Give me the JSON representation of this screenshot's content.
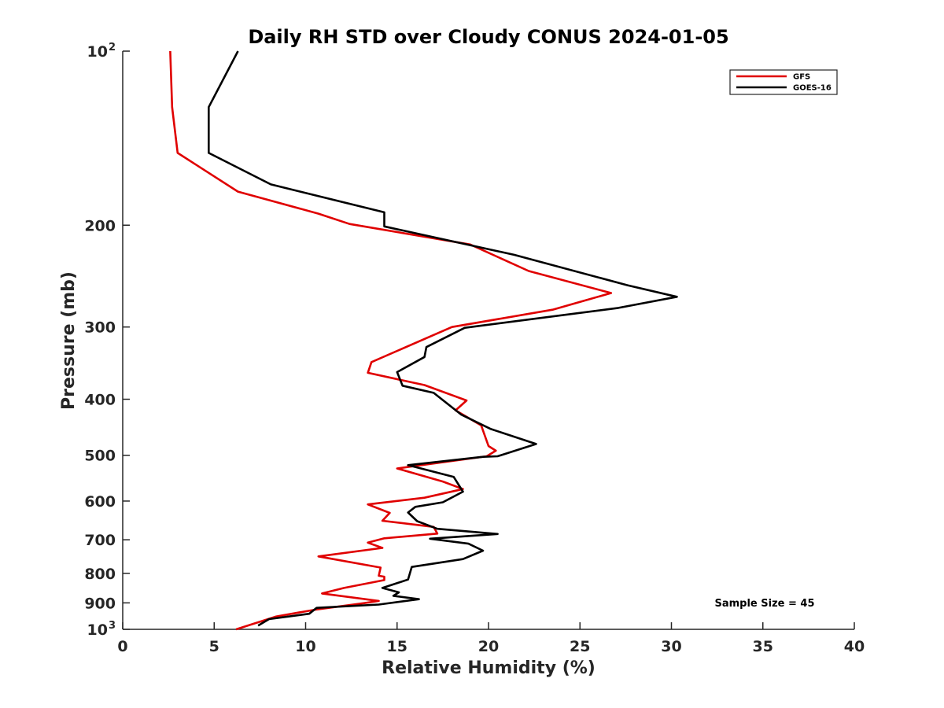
{
  "chart_data": {
    "type": "line",
    "title": "Daily RH STD over Cloudy CONUS 2024-01-05",
    "xlabel": "Relative Humidity (%)",
    "ylabel": "Pressure (mb)",
    "xlim": [
      0,
      40
    ],
    "ylim": [
      100,
      1000
    ],
    "y_scale": "log",
    "y_reversed": true,
    "x_ticks": [
      0,
      5,
      10,
      15,
      20,
      25,
      30,
      35,
      40
    ],
    "x_tick_labels": [
      "0",
      "5",
      "10",
      "15",
      "20",
      "25",
      "30",
      "35",
      "40"
    ],
    "y_ticks": [
      100,
      200,
      300,
      400,
      500,
      600,
      700,
      800,
      900,
      1000
    ],
    "y_tick_labels": [
      {
        "base": "10",
        "exp": "2"
      },
      {
        "base": "200",
        "exp": ""
      },
      {
        "base": "300",
        "exp": ""
      },
      {
        "base": "400",
        "exp": ""
      },
      {
        "base": "500",
        "exp": ""
      },
      {
        "base": "600",
        "exp": ""
      },
      {
        "base": "700",
        "exp": ""
      },
      {
        "base": "800",
        "exp": ""
      },
      {
        "base": "900",
        "exp": ""
      },
      {
        "base": "10",
        "exp": "3"
      }
    ],
    "grid": false,
    "legend_position": "top-right",
    "annotation": "Sample Size = 45",
    "series": [
      {
        "name": "GFS",
        "color": "#e00000",
        "points": [
          [
            2.6,
            100
          ],
          [
            2.7,
            125
          ],
          [
            3.0,
            150
          ],
          [
            6.3,
            175
          ],
          [
            10.7,
            191
          ],
          [
            12.4,
            199
          ],
          [
            19.0,
            216
          ],
          [
            22.2,
            240
          ],
          [
            26.7,
            262
          ],
          [
            23.5,
            280
          ],
          [
            18.0,
            300
          ],
          [
            13.6,
            345
          ],
          [
            13.4,
            360
          ],
          [
            16.5,
            378
          ],
          [
            18.8,
            402
          ],
          [
            18.2,
            418
          ],
          [
            19.6,
            444
          ],
          [
            20.0,
            482
          ],
          [
            20.4,
            491
          ],
          [
            19.9,
            502
          ],
          [
            15.0,
            527
          ],
          [
            17.5,
            555
          ],
          [
            18.6,
            572
          ],
          [
            16.5,
            592
          ],
          [
            13.4,
            608
          ],
          [
            14.6,
            629
          ],
          [
            14.2,
            649
          ],
          [
            17.0,
            665
          ],
          [
            17.2,
            683
          ],
          [
            14.3,
            696
          ],
          [
            13.4,
            708
          ],
          [
            14.2,
            723
          ],
          [
            10.7,
            748
          ],
          [
            14.1,
            782
          ],
          [
            14.0,
            808
          ],
          [
            14.3,
            811
          ],
          [
            14.3,
            822
          ],
          [
            12.1,
            848
          ],
          [
            10.9,
            867
          ],
          [
            14.0,
            893
          ],
          [
            13.2,
            901
          ],
          [
            10.5,
            925
          ],
          [
            8.4,
            950
          ],
          [
            6.2,
            1000
          ]
        ]
      },
      {
        "name": "GOES-16",
        "color": "#000000",
        "points": [
          [
            6.3,
            100
          ],
          [
            4.7,
            125
          ],
          [
            4.7,
            150
          ],
          [
            8.1,
            170
          ],
          [
            14.3,
            190
          ],
          [
            14.3,
            201
          ],
          [
            21.4,
            225
          ],
          [
            27.6,
            254
          ],
          [
            30.3,
            266
          ],
          [
            27.1,
            278
          ],
          [
            18.7,
            301
          ],
          [
            16.6,
            325
          ],
          [
            16.5,
            338
          ],
          [
            15.0,
            359
          ],
          [
            15.3,
            379
          ],
          [
            17.0,
            390
          ],
          [
            18.5,
            425
          ],
          [
            20.1,
            450
          ],
          [
            22.6,
            478
          ],
          [
            20.5,
            502
          ],
          [
            19.7,
            503
          ],
          [
            15.6,
            520
          ],
          [
            18.1,
            545
          ],
          [
            18.6,
            578
          ],
          [
            17.5,
            603
          ],
          [
            16.0,
            614
          ],
          [
            15.6,
            628
          ],
          [
            16.1,
            650
          ],
          [
            17.2,
            670
          ],
          [
            20.5,
            684
          ],
          [
            16.8,
            697
          ],
          [
            18.9,
            711
          ],
          [
            19.7,
            731
          ],
          [
            18.6,
            756
          ],
          [
            15.8,
            780
          ],
          [
            15.6,
            820
          ],
          [
            14.2,
            848
          ],
          [
            15.1,
            863
          ],
          [
            14.8,
            875
          ],
          [
            16.2,
            887
          ],
          [
            14.0,
            906
          ],
          [
            10.6,
            918
          ],
          [
            10.2,
            940
          ],
          [
            8.0,
            960
          ],
          [
            7.4,
            985
          ]
        ]
      }
    ]
  }
}
